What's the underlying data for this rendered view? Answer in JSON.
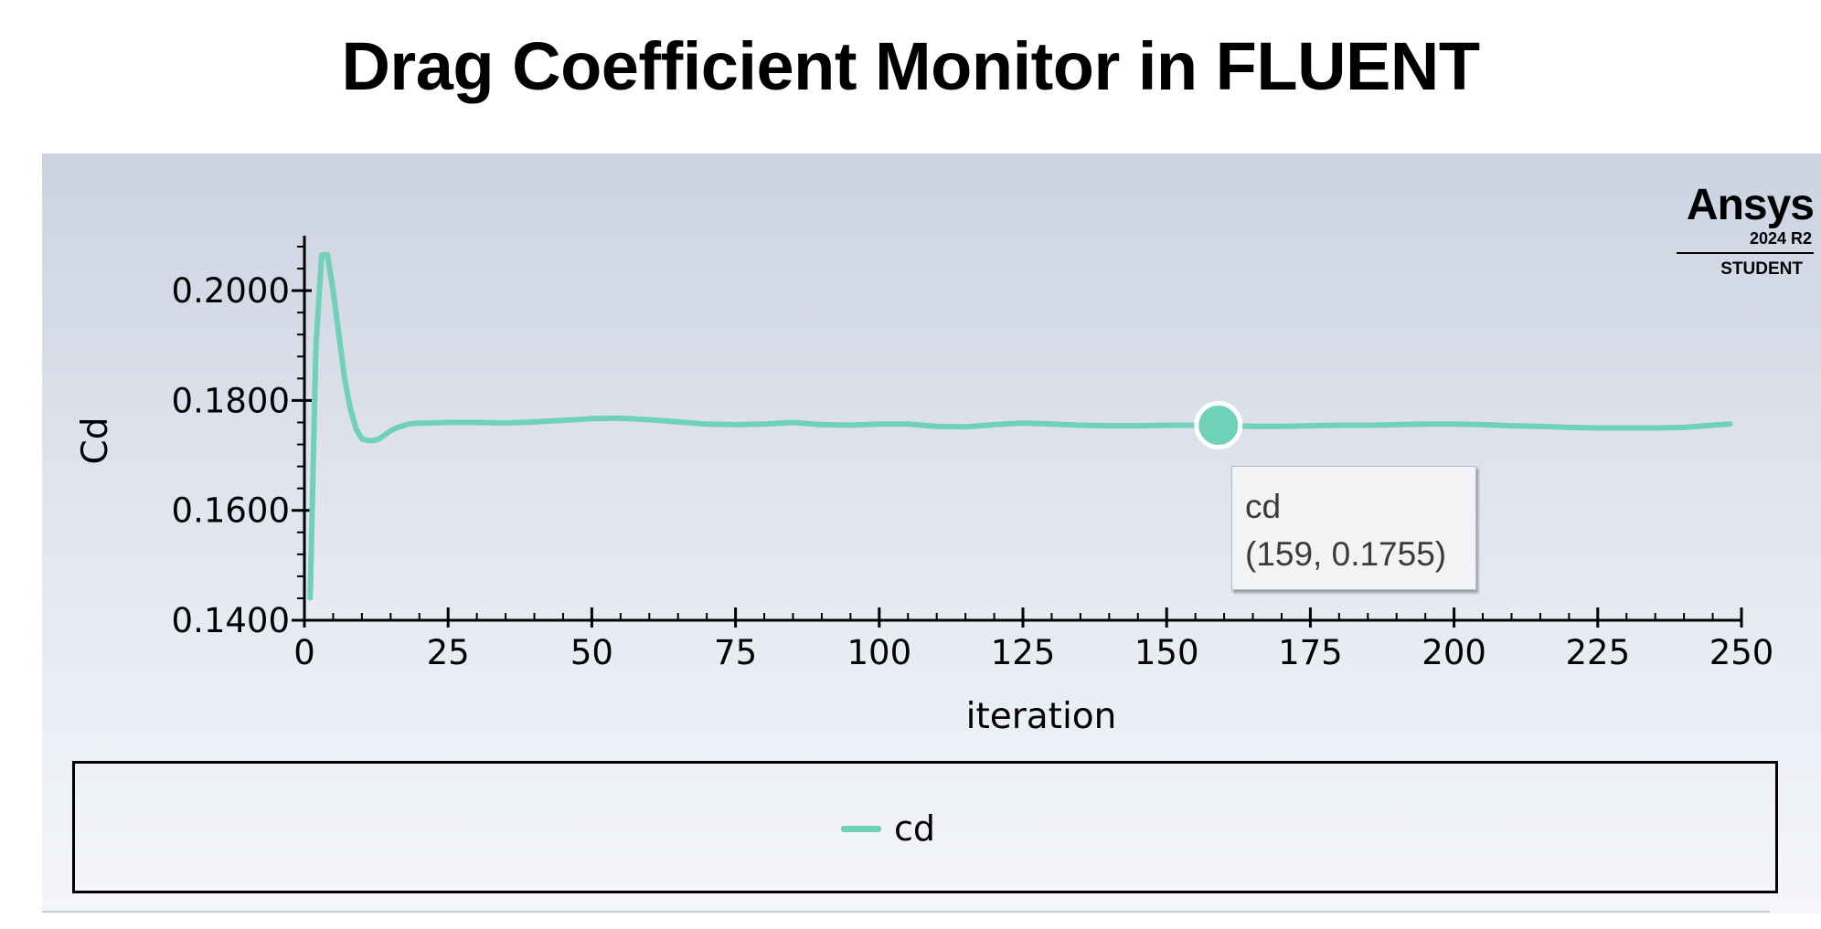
{
  "title": "Drag Coefficient Monitor in FLUENT",
  "logo": {
    "brand": "Ansys",
    "version": "2024 R2",
    "edition": "STUDENT"
  },
  "colors": {
    "series": "#6fd1b8",
    "panel_top": "#ccd3e1",
    "panel_bottom": "#f4f6fa"
  },
  "tooltip": {
    "series": "cd",
    "value": "(159, 0.1755)"
  },
  "legend": {
    "items": [
      {
        "label": "cd"
      }
    ]
  },
  "chart_data": {
    "type": "line",
    "title": "",
    "xlabel": "iteration",
    "ylabel": "Cd",
    "xlim": [
      0,
      250
    ],
    "ylim": [
      0.14,
      0.21
    ],
    "xticks": [
      0,
      25,
      50,
      75,
      100,
      125,
      150,
      175,
      200,
      225,
      250
    ],
    "xtick_labels": [
      "0",
      "25",
      "50",
      "75",
      "100",
      "125",
      "150",
      "175",
      "200",
      "225",
      "250"
    ],
    "yticks": [
      0.14,
      0.16,
      0.18,
      0.2
    ],
    "ytick_labels": [
      "0.1400",
      "0.1600",
      "0.1800",
      "0.2000"
    ],
    "grid": false,
    "legend_position": "bottom",
    "highlight": {
      "x": 159,
      "y": 0.1755
    },
    "series": [
      {
        "name": "cd",
        "x": [
          1,
          2,
          3,
          4,
          5,
          6,
          7,
          8,
          9,
          10,
          11,
          12,
          13,
          14,
          15,
          16,
          18,
          20,
          22,
          25,
          30,
          35,
          40,
          45,
          50,
          55,
          60,
          65,
          70,
          75,
          80,
          85,
          90,
          95,
          100,
          105,
          110,
          115,
          120,
          125,
          130,
          135,
          140,
          145,
          150,
          155,
          159,
          165,
          170,
          175,
          180,
          185,
          190,
          195,
          200,
          205,
          210,
          215,
          220,
          225,
          230,
          235,
          240,
          245,
          248
        ],
        "y": [
          0.1441,
          0.19,
          0.2065,
          0.2065,
          0.2,
          0.192,
          0.184,
          0.1785,
          0.1748,
          0.173,
          0.1727,
          0.1727,
          0.173,
          0.1737,
          0.1745,
          0.175,
          0.1757,
          0.1759,
          0.1759,
          0.176,
          0.176,
          0.1759,
          0.1761,
          0.1764,
          0.1767,
          0.1768,
          0.1765,
          0.1761,
          0.1757,
          0.1756,
          0.1757,
          0.176,
          0.1756,
          0.1755,
          0.1757,
          0.1757,
          0.1753,
          0.1752,
          0.1756,
          0.1759,
          0.1757,
          0.1755,
          0.1754,
          0.1754,
          0.1755,
          0.1755,
          0.1755,
          0.1753,
          0.1753,
          0.1754,
          0.1755,
          0.1755,
          0.1756,
          0.1757,
          0.1757,
          0.1756,
          0.1754,
          0.1753,
          0.1751,
          0.175,
          0.175,
          0.175,
          0.1751,
          0.1755,
          0.1757
        ]
      }
    ]
  }
}
